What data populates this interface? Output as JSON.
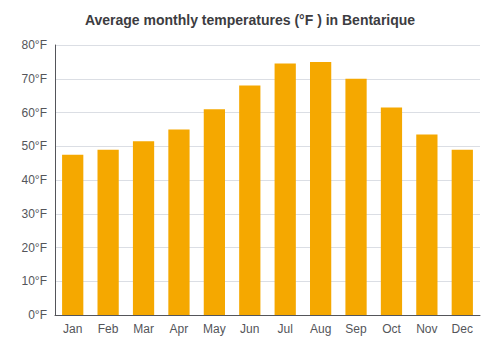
{
  "chart_data": {
    "type": "bar",
    "title": "Average monthly temperatures (°F ) in Bentarique",
    "categories": [
      "Jan",
      "Feb",
      "Mar",
      "Apr",
      "May",
      "Jun",
      "Jul",
      "Aug",
      "Sep",
      "Oct",
      "Nov",
      "Dec"
    ],
    "values": [
      47.5,
      49.0,
      51.5,
      55.0,
      61.0,
      68.0,
      74.5,
      75.0,
      70.0,
      61.5,
      53.5,
      49.0
    ],
    "color": "#F5A800",
    "ylim": [
      0,
      80
    ],
    "yticks": [
      {
        "value": 0,
        "label": "0°F"
      },
      {
        "value": 10,
        "label": "10°F"
      },
      {
        "value": 20,
        "label": "20°F"
      },
      {
        "value": 30,
        "label": "30°F"
      },
      {
        "value": 40,
        "label": "40°F"
      },
      {
        "value": 50,
        "label": "50°F"
      },
      {
        "value": 60,
        "label": "60°F"
      },
      {
        "value": 70,
        "label": "70°F"
      },
      {
        "value": 80,
        "label": "80°F"
      }
    ],
    "grid": true
  }
}
